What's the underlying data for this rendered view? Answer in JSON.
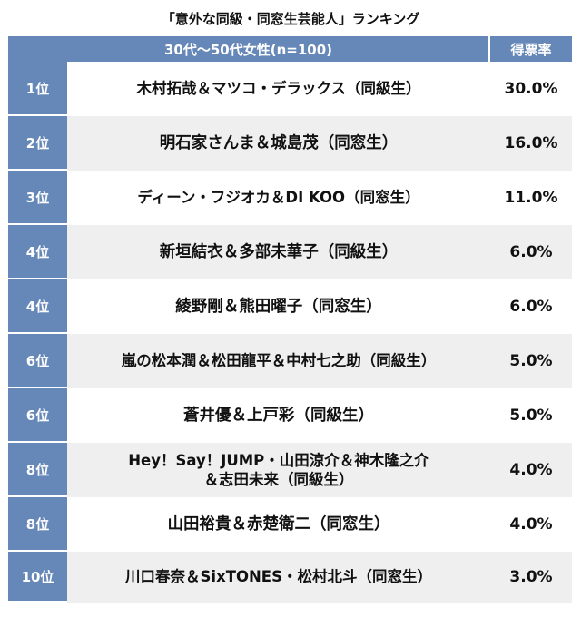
{
  "title": "「意外な同級・同窓生芸能人」ランキング",
  "header": {
    "main": "30代〜50代女性(n=100)",
    "pct": "得票率"
  },
  "chart_data": {
    "type": "table",
    "columns": [
      "30代〜50代女性(n=100)",
      "得票率"
    ],
    "rows": [
      {
        "rank": "1位",
        "name": "木村拓哉＆マツコ・デラックス（同級生）",
        "pct": "30.0%",
        "value": 30.0
      },
      {
        "rank": "2位",
        "name": "明石家さんま＆城島茂（同窓生）",
        "pct": "16.0%",
        "value": 16.0
      },
      {
        "rank": "3位",
        "name": "ディーン・フジオカ＆DI KOO（同窓生）",
        "pct": "11.0%",
        "value": 11.0
      },
      {
        "rank": "4位",
        "name": "新垣結衣＆多部未華子（同級生）",
        "pct": "6.0%",
        "value": 6.0
      },
      {
        "rank": "4位",
        "name": "綾野剛＆熊田曜子（同窓生）",
        "pct": "6.0%",
        "value": 6.0
      },
      {
        "rank": "6位",
        "name": "嵐の松本潤＆松田龍平＆中村七之助（同級生）",
        "pct": "5.0%",
        "value": 5.0
      },
      {
        "rank": "6位",
        "name": "蒼井優＆上戸彩（同級生）",
        "pct": "5.0%",
        "value": 5.0
      },
      {
        "rank": "8位",
        "name": "Hey！Say！JUMP・山田涼介＆神木隆之介\n＆志田未来（同級生）",
        "pct": "4.0%",
        "value": 4.0
      },
      {
        "rank": "8位",
        "name": "山田裕貴＆赤楚衛二（同窓生）",
        "pct": "4.0%",
        "value": 4.0
      },
      {
        "rank": "10位",
        "name": "川口春奈＆SixTONES・松村北斗（同窓生）",
        "pct": "3.0%",
        "value": 3.0
      }
    ]
  },
  "colors": {
    "header": "#6688b8",
    "row_alt": "#efefef"
  }
}
